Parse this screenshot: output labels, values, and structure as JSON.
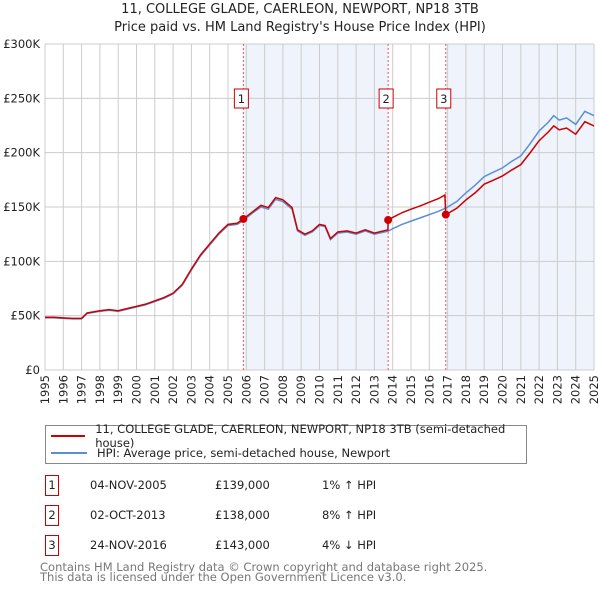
{
  "chart_data": {
    "type": "line",
    "title": "11, COLLEGE GLADE, CAERLEON, NEWPORT, NP18 3TB",
    "subtitle": "Price paid vs. HM Land Registry's House Price Index (HPI)",
    "xlim": [
      1995,
      2025
    ],
    "ylim": [
      0,
      300000
    ],
    "x_ticks": [
      "1995",
      "1996",
      "1997",
      "1998",
      "1999",
      "2000",
      "2001",
      "2002",
      "2003",
      "2004",
      "2005",
      "2006",
      "2007",
      "2008",
      "2009",
      "2010",
      "2011",
      "2012",
      "2013",
      "2014",
      "2015",
      "2016",
      "2017",
      "2018",
      "2019",
      "2020",
      "2021",
      "2022",
      "2023",
      "2024",
      "2025"
    ],
    "y_ticks": [
      {
        "v": 0,
        "label": "£0"
      },
      {
        "v": 50000,
        "label": "£50K"
      },
      {
        "v": 100000,
        "label": "£100K"
      },
      {
        "v": 150000,
        "label": "£150K"
      },
      {
        "v": 200000,
        "label": "£200K"
      },
      {
        "v": 250000,
        "label": "£250K"
      },
      {
        "v": 300000,
        "label": "£300K"
      }
    ],
    "grid": true,
    "series": [
      {
        "name": "11, COLLEGE GLADE, CAERLEON, NEWPORT, NP18 3TB (semi-detached house)",
        "color": "#cc0000",
        "points": [
          [
            1995,
            48500
          ],
          [
            1995.5,
            48500
          ],
          [
            1996,
            48000
          ],
          [
            1996.5,
            47500
          ],
          [
            1997,
            47500
          ],
          [
            1997.3,
            52500
          ],
          [
            1998,
            54500
          ],
          [
            1998.5,
            55500
          ],
          [
            1999,
            54500
          ],
          [
            1999.5,
            56600
          ],
          [
            2000,
            58600
          ],
          [
            2000.5,
            60600
          ],
          [
            2001,
            63600
          ],
          [
            2001.5,
            66700
          ],
          [
            2002,
            70700
          ],
          [
            2002.5,
            78800
          ],
          [
            2003,
            92900
          ],
          [
            2003.5,
            106000
          ],
          [
            2004,
            116000
          ],
          [
            2004.5,
            126000
          ],
          [
            2005,
            134000
          ],
          [
            2005.5,
            135000
          ],
          [
            2005.84,
            139000
          ],
          [
            2006.3,
            145000
          ],
          [
            2006.8,
            151500
          ],
          [
            2007.2,
            149500
          ],
          [
            2007.6,
            158600
          ],
          [
            2008,
            156600
          ],
          [
            2008.5,
            149500
          ],
          [
            2008.8,
            129000
          ],
          [
            2009.2,
            125000
          ],
          [
            2009.6,
            128000
          ],
          [
            2010,
            134000
          ],
          [
            2010.3,
            133000
          ],
          [
            2010.6,
            121000
          ],
          [
            2011,
            127000
          ],
          [
            2011.5,
            128000
          ],
          [
            2012,
            126000
          ],
          [
            2012.5,
            129000
          ],
          [
            2013,
            126000
          ],
          [
            2013.74,
            129000
          ],
          [
            2013.75,
            138000
          ],
          [
            2014,
            140400
          ],
          [
            2014.5,
            144700
          ],
          [
            2015,
            148000
          ],
          [
            2015.5,
            151000
          ],
          [
            2016,
            154400
          ],
          [
            2016.5,
            157700
          ],
          [
            2016.85,
            161000
          ],
          [
            2016.9,
            143000
          ],
          [
            2017.5,
            148800
          ],
          [
            2018,
            156500
          ],
          [
            2018.5,
            163000
          ],
          [
            2019,
            171000
          ],
          [
            2019.5,
            174700
          ],
          [
            2020,
            178600
          ],
          [
            2020.5,
            184000
          ],
          [
            2021,
            189000
          ],
          [
            2021.5,
            199700
          ],
          [
            2022,
            211000
          ],
          [
            2022.5,
            219000
          ],
          [
            2022.8,
            224600
          ],
          [
            2023.1,
            221000
          ],
          [
            2023.5,
            222700
          ],
          [
            2024,
            217000
          ],
          [
            2024.5,
            228500
          ],
          [
            2025,
            224600
          ]
        ]
      },
      {
        "name": "HPI: Average price, semi-detached house, Newport",
        "color": "#5b8fd4",
        "points": [
          [
            1995,
            48000
          ],
          [
            1995.5,
            48000
          ],
          [
            1996,
            47500
          ],
          [
            1996.5,
            47000
          ],
          [
            1997,
            47000
          ],
          [
            1997.3,
            52000
          ],
          [
            1998,
            54000
          ],
          [
            1998.5,
            55000
          ],
          [
            1999,
            54000
          ],
          [
            1999.5,
            56000
          ],
          [
            2000,
            58000
          ],
          [
            2000.5,
            60000
          ],
          [
            2001,
            63000
          ],
          [
            2001.5,
            66000
          ],
          [
            2002,
            70000
          ],
          [
            2002.5,
            78000
          ],
          [
            2003,
            92000
          ],
          [
            2003.5,
            105000
          ],
          [
            2004,
            115000
          ],
          [
            2004.5,
            125000
          ],
          [
            2005,
            133000
          ],
          [
            2005.5,
            134000
          ],
          [
            2005.84,
            137600
          ],
          [
            2006.3,
            144000
          ],
          [
            2006.8,
            150000
          ],
          [
            2007.2,
            148000
          ],
          [
            2007.6,
            157000
          ],
          [
            2008,
            155000
          ],
          [
            2008.5,
            148000
          ],
          [
            2008.8,
            128000
          ],
          [
            2009.2,
            124000
          ],
          [
            2009.6,
            127000
          ],
          [
            2010,
            133000
          ],
          [
            2010.3,
            132000
          ],
          [
            2010.6,
            120000
          ],
          [
            2011,
            126000
          ],
          [
            2011.5,
            127000
          ],
          [
            2012,
            125000
          ],
          [
            2012.5,
            128000
          ],
          [
            2013,
            125000
          ],
          [
            2013.75,
            127800
          ],
          [
            2014,
            130000
          ],
          [
            2014.5,
            134000
          ],
          [
            2015,
            137000
          ],
          [
            2015.5,
            140000
          ],
          [
            2016,
            143000
          ],
          [
            2016.5,
            146000
          ],
          [
            2016.9,
            149000
          ],
          [
            2017.5,
            155000
          ],
          [
            2018,
            163000
          ],
          [
            2018.5,
            170000
          ],
          [
            2019,
            178000
          ],
          [
            2019.5,
            182000
          ],
          [
            2020,
            186000
          ],
          [
            2020.5,
            192000
          ],
          [
            2021,
            197000
          ],
          [
            2021.5,
            208000
          ],
          [
            2022,
            220000
          ],
          [
            2022.5,
            228000
          ],
          [
            2022.8,
            234000
          ],
          [
            2023.1,
            230000
          ],
          [
            2023.5,
            232000
          ],
          [
            2024,
            226000
          ],
          [
            2024.5,
            238000
          ],
          [
            2025,
            234000
          ]
        ]
      }
    ],
    "sales": [
      {
        "id": "1",
        "x": 2005.84,
        "y": 139000
      },
      {
        "id": "2",
        "x": 2013.75,
        "y": 138000
      },
      {
        "id": "3",
        "x": 2016.9,
        "y": 143000
      }
    ],
    "legend_placement": "bottom"
  },
  "table": [
    {
      "id": "1",
      "date": "04-NOV-2005",
      "price": "£139,000",
      "hpi": "1% ↑ HPI"
    },
    {
      "id": "2",
      "date": "02-OCT-2013",
      "price": "£138,000",
      "hpi": "8% ↑ HPI"
    },
    {
      "id": "3",
      "date": "24-NOV-2016",
      "price": "£143,000",
      "hpi": "4% ↓ HPI"
    }
  ],
  "footer": [
    "Contains HM Land Registry data © Crown copyright and database right 2025.",
    "This data is licensed under the Open Government Licence v3.0."
  ]
}
